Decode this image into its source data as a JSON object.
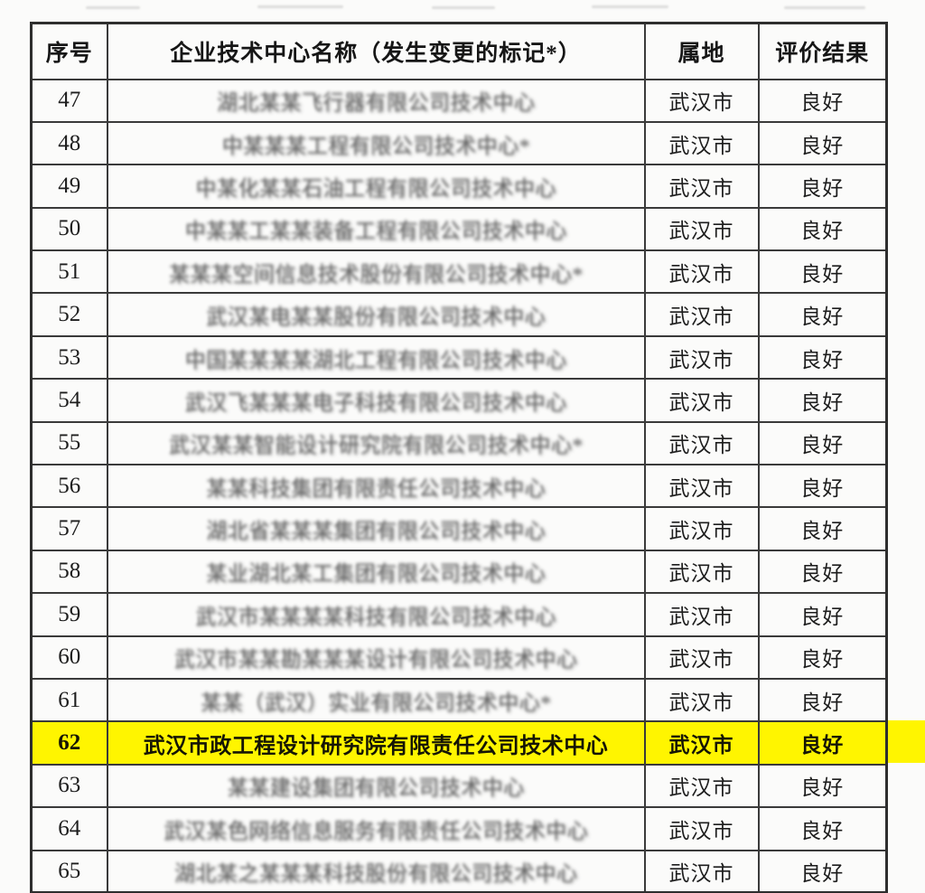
{
  "table": {
    "headers": [
      "序号",
      "企业技术中心名称（发生变更的标记*）",
      "属地",
      "评价结果"
    ],
    "highlight_color": "#fff500",
    "rows": [
      {
        "no": "47",
        "name": "湖北某某飞行器有限公司技术中心",
        "blurred": true,
        "highlighted": false,
        "location": "武汉市",
        "result": "良好"
      },
      {
        "no": "48",
        "name": "中某某某工程有限公司技术中心*",
        "blurred": true,
        "highlighted": false,
        "location": "武汉市",
        "result": "良好"
      },
      {
        "no": "49",
        "name": "中某化某某石油工程有限公司技术中心",
        "blurred": true,
        "highlighted": false,
        "location": "武汉市",
        "result": "良好"
      },
      {
        "no": "50",
        "name": "中某某工某某装备工程有限公司技术中心",
        "blurred": true,
        "highlighted": false,
        "location": "武汉市",
        "result": "良好"
      },
      {
        "no": "51",
        "name": "某某某空间信息技术股份有限公司技术中心*",
        "blurred": true,
        "highlighted": false,
        "location": "武汉市",
        "result": "良好"
      },
      {
        "no": "52",
        "name": "武汉某电某某股份有限公司技术中心",
        "blurred": true,
        "highlighted": false,
        "location": "武汉市",
        "result": "良好"
      },
      {
        "no": "53",
        "name": "中国某某某某湖北工程有限公司技术中心",
        "blurred": true,
        "highlighted": false,
        "location": "武汉市",
        "result": "良好"
      },
      {
        "no": "54",
        "name": "武汉飞某某某电子科技有限公司技术中心",
        "blurred": true,
        "highlighted": false,
        "location": "武汉市",
        "result": "良好"
      },
      {
        "no": "55",
        "name": "武汉某某智能设计研究院有限公司技术中心*",
        "blurred": true,
        "highlighted": false,
        "location": "武汉市",
        "result": "良好"
      },
      {
        "no": "56",
        "name": "某某科技集团有限责任公司技术中心",
        "blurred": true,
        "highlighted": false,
        "location": "武汉市",
        "result": "良好"
      },
      {
        "no": "57",
        "name": "湖北省某某某集团有限公司技术中心",
        "blurred": true,
        "highlighted": false,
        "location": "武汉市",
        "result": "良好"
      },
      {
        "no": "58",
        "name": "某业湖北某工集团有限公司技术中心",
        "blurred": true,
        "highlighted": false,
        "location": "武汉市",
        "result": "良好"
      },
      {
        "no": "59",
        "name": "武汉市某某某某科技有限公司技术中心",
        "blurred": true,
        "highlighted": false,
        "location": "武汉市",
        "result": "良好"
      },
      {
        "no": "60",
        "name": "武汉市某某勘某某某设计有限公司技术中心",
        "blurred": true,
        "highlighted": false,
        "location": "武汉市",
        "result": "良好"
      },
      {
        "no": "61",
        "name": "某某（武汉）实业有限公司技术中心*",
        "blurred": true,
        "highlighted": false,
        "location": "武汉市",
        "result": "良好"
      },
      {
        "no": "62",
        "name": "武汉市政工程设计研究院有限责任公司技术中心",
        "blurred": false,
        "highlighted": true,
        "location": "武汉市",
        "result": "良好"
      },
      {
        "no": "63",
        "name": "某某建设集团有限公司技术中心",
        "blurred": true,
        "highlighted": false,
        "location": "武汉市",
        "result": "良好"
      },
      {
        "no": "64",
        "name": "武汉某色网络信息服务有限责任公司技术中心",
        "blurred": true,
        "highlighted": false,
        "location": "武汉市",
        "result": "良好"
      },
      {
        "no": "65",
        "name": "湖北某之某某某科技股份有限公司技术中心",
        "blurred": true,
        "highlighted": false,
        "location": "武汉市",
        "result": "良好"
      }
    ]
  }
}
